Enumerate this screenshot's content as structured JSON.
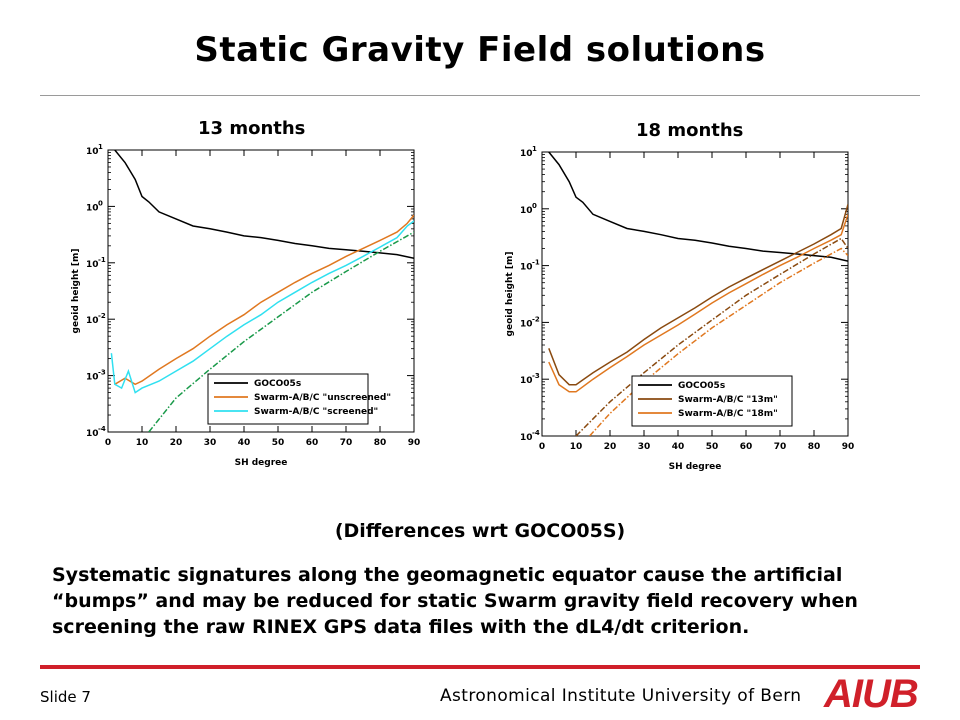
{
  "slide": {
    "title": "Static Gravity Field solutions",
    "caption": "(Differences wrt GOCO05S)",
    "body": "Systematic signatures along the geomagnetic equator cause the artificial “bumps” and may be reduced for static Swarm gravity field recovery when screening the raw RINEX GPS data files with the dL4/dt criterion.",
    "footer": {
      "slide_number": "Slide 7",
      "institute": "Astronomical Institute University of Bern",
      "logo_text": "AIUB"
    },
    "accent_color": "#d0202a"
  },
  "chart_data": [
    {
      "type": "line",
      "title": "13 months",
      "xlabel": "SH degree",
      "ylabel": "geoid height [m]",
      "yscale": "log",
      "xlim": [
        0,
        90
      ],
      "ylim": [
        0.0001,
        10
      ],
      "xticks": [
        "0",
        "10",
        "20",
        "30",
        "40",
        "50",
        "60",
        "70",
        "80",
        "90"
      ],
      "yticks": [
        {
          "exp": "1"
        },
        {
          "exp": "0"
        },
        {
          "exp": "-1"
        },
        {
          "exp": "-2"
        },
        {
          "exp": "-3"
        },
        {
          "exp": "-4"
        }
      ],
      "legend_position": "bottom-right",
      "series": [
        {
          "name": "GOCO05s",
          "color": "#000000",
          "style": "solid",
          "x": [
            2,
            5,
            8,
            10,
            12,
            15,
            20,
            25,
            30,
            35,
            40,
            45,
            50,
            55,
            60,
            65,
            70,
            75,
            80,
            85,
            90
          ],
          "y": [
            10,
            6,
            3,
            1.5,
            1.2,
            0.8,
            0.6,
            0.45,
            0.4,
            0.35,
            0.3,
            0.28,
            0.25,
            0.22,
            0.2,
            0.18,
            0.17,
            0.16,
            0.15,
            0.14,
            0.12
          ]
        },
        {
          "name": "Swarm-A/B/C \"unscreened\"",
          "color": "#e07820",
          "style": "solid",
          "x": [
            2,
            5,
            8,
            10,
            15,
            20,
            25,
            30,
            35,
            40,
            45,
            50,
            55,
            60,
            65,
            70,
            75,
            80,
            85,
            88,
            90
          ],
          "y": [
            0.0007,
            0.0009,
            0.0007,
            0.0008,
            0.0013,
            0.002,
            0.003,
            0.005,
            0.008,
            0.012,
            0.02,
            0.03,
            0.045,
            0.065,
            0.09,
            0.13,
            0.18,
            0.25,
            0.35,
            0.5,
            0.7
          ]
        },
        {
          "name": "Swarm-A/B/C \"screened\"",
          "color": "#30e0f0",
          "style": "solid",
          "x": [
            1,
            2,
            4,
            6,
            8,
            10,
            15,
            20,
            25,
            30,
            35,
            40,
            45,
            50,
            55,
            60,
            65,
            70,
            75,
            80,
            85,
            88,
            90
          ],
          "y": [
            0.0025,
            0.0007,
            0.0006,
            0.0012,
            0.0005,
            0.0006,
            0.0008,
            0.0012,
            0.0018,
            0.003,
            0.005,
            0.008,
            0.012,
            0.02,
            0.03,
            0.045,
            0.065,
            0.09,
            0.13,
            0.19,
            0.28,
            0.45,
            0.55
          ]
        },
        {
          "name": "",
          "color": "#1a9a4a",
          "style": "dashdot",
          "show_in_legend": false,
          "x": [
            12,
            20,
            30,
            40,
            50,
            60,
            70,
            80,
            90
          ],
          "y": [
            0.0001,
            0.0004,
            0.0013,
            0.004,
            0.011,
            0.03,
            0.07,
            0.16,
            0.35
          ]
        }
      ]
    },
    {
      "type": "line",
      "title": "18 months",
      "xlabel": "SH degree",
      "ylabel": "geoid height [m]",
      "yscale": "log",
      "xlim": [
        0,
        90
      ],
      "ylim": [
        0.0001,
        10
      ],
      "xticks": [
        "0",
        "10",
        "20",
        "30",
        "40",
        "50",
        "60",
        "70",
        "80",
        "90"
      ],
      "yticks": [
        {
          "exp": "1"
        },
        {
          "exp": "0"
        },
        {
          "exp": "-1"
        },
        {
          "exp": "-2"
        },
        {
          "exp": "-3"
        },
        {
          "exp": "-4"
        }
      ],
      "legend_position": "bottom-right",
      "series": [
        {
          "name": "GOCO05s",
          "color": "#000000",
          "style": "solid",
          "x": [
            2,
            5,
            8,
            10,
            12,
            15,
            20,
            25,
            30,
            35,
            40,
            45,
            50,
            55,
            60,
            65,
            70,
            75,
            80,
            85,
            90
          ],
          "y": [
            10,
            6,
            3,
            1.6,
            1.3,
            0.8,
            0.6,
            0.45,
            0.4,
            0.35,
            0.3,
            0.28,
            0.25,
            0.22,
            0.2,
            0.18,
            0.17,
            0.16,
            0.15,
            0.14,
            0.12
          ]
        },
        {
          "name": "Swarm-A/B/C \"13m\"",
          "color": "#8a4a10",
          "style": "solid",
          "x": [
            2,
            5,
            8,
            10,
            15,
            20,
            25,
            30,
            35,
            40,
            45,
            50,
            55,
            60,
            65,
            70,
            75,
            80,
            85,
            88,
            90
          ],
          "y": [
            0.0035,
            0.0012,
            0.0008,
            0.0008,
            0.0013,
            0.002,
            0.003,
            0.005,
            0.008,
            0.012,
            0.018,
            0.028,
            0.042,
            0.06,
            0.085,
            0.12,
            0.17,
            0.24,
            0.35,
            0.45,
            1.2
          ]
        },
        {
          "name": "Swarm-A/B/C \"18m\"",
          "color": "#e07820",
          "style": "solid",
          "x": [
            2,
            5,
            8,
            10,
            15,
            20,
            25,
            30,
            35,
            40,
            45,
            50,
            55,
            60,
            65,
            70,
            75,
            80,
            85,
            88,
            90
          ],
          "y": [
            0.002,
            0.0008,
            0.0006,
            0.0006,
            0.001,
            0.0016,
            0.0025,
            0.004,
            0.006,
            0.009,
            0.014,
            0.022,
            0.033,
            0.048,
            0.07,
            0.1,
            0.14,
            0.2,
            0.28,
            0.35,
            0.8
          ]
        },
        {
          "name": "",
          "color": "#8a4a10",
          "style": "dashdot",
          "show_in_legend": false,
          "x": [
            10,
            20,
            30,
            40,
            50,
            60,
            70,
            80,
            88,
            90
          ],
          "y": [
            0.0001,
            0.0004,
            0.0013,
            0.004,
            0.011,
            0.03,
            0.07,
            0.16,
            0.3,
            0.2
          ]
        },
        {
          "name": "",
          "color": "#e07820",
          "style": "dashdot",
          "show_in_legend": false,
          "x": [
            14,
            20,
            30,
            40,
            50,
            60,
            70,
            80,
            88,
            90
          ],
          "y": [
            0.0001,
            0.00025,
            0.0009,
            0.0028,
            0.008,
            0.02,
            0.05,
            0.11,
            0.2,
            0.15
          ]
        }
      ]
    }
  ]
}
